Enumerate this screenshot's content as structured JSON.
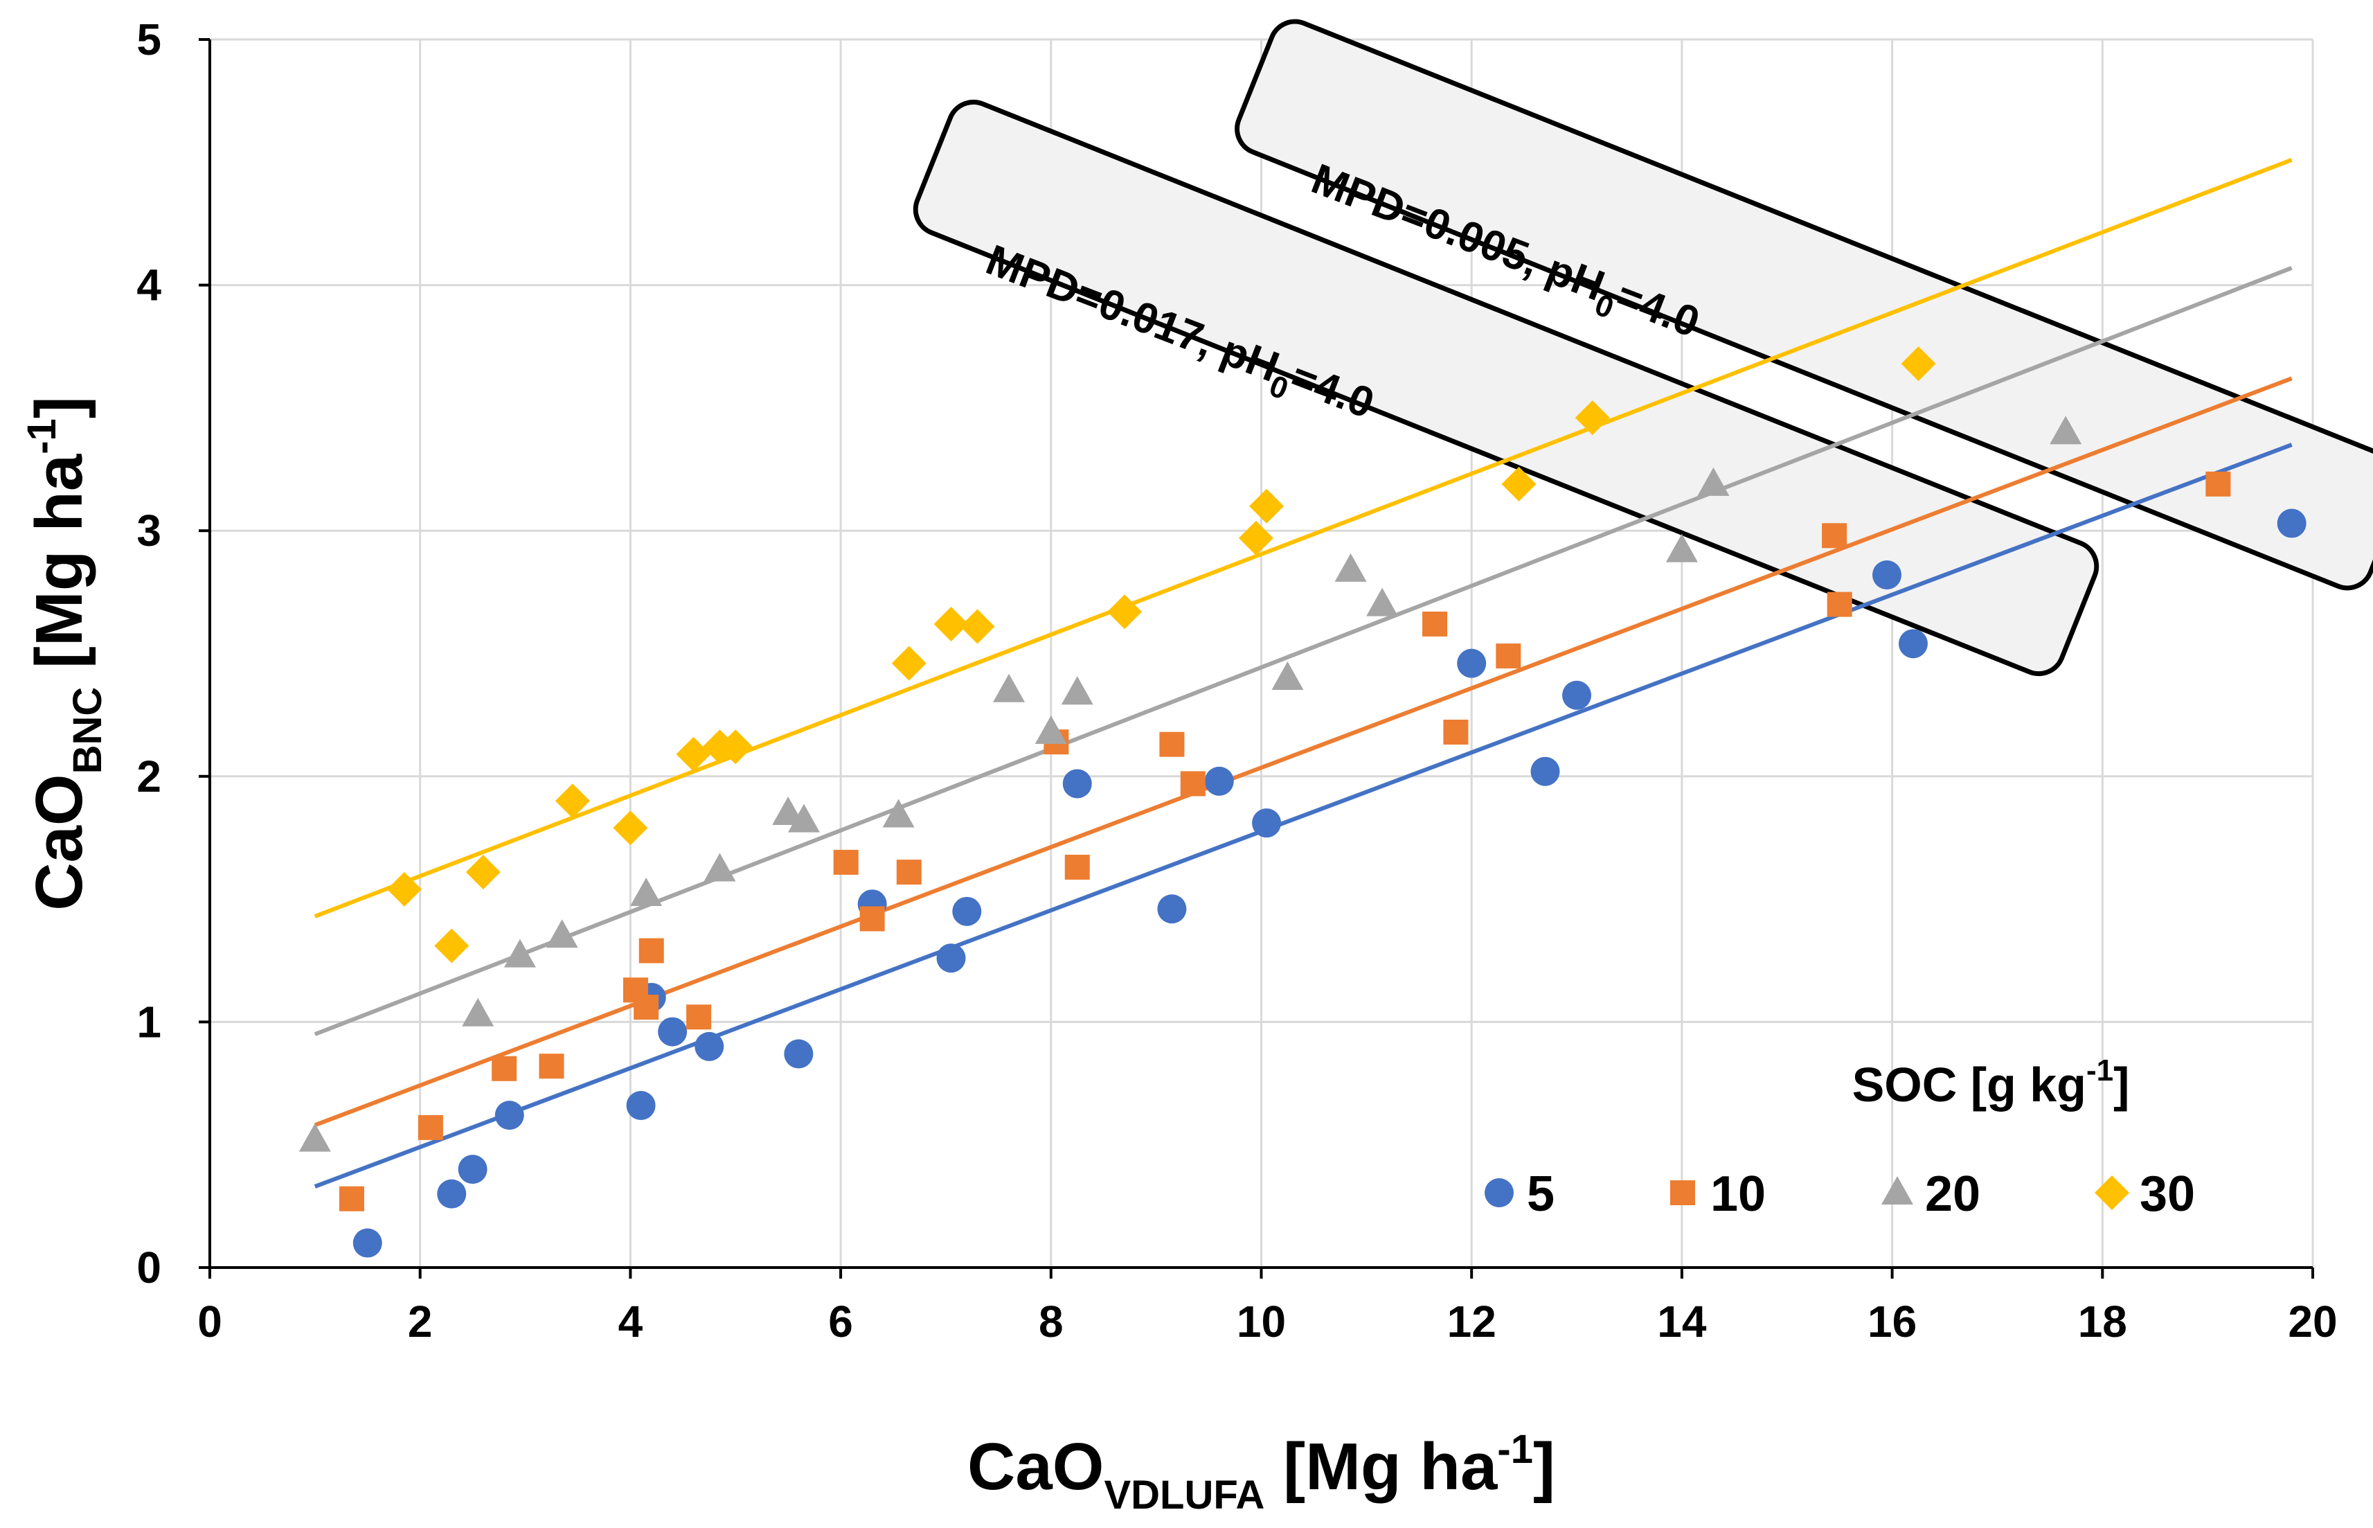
{
  "chart_data": {
    "type": "scatter",
    "title": "",
    "xlabel": {
      "main": "CaO",
      "sub": "VDLUFA",
      "unit_pre": " [Mg ha",
      "unit_sup": "-1",
      "unit_post": "]"
    },
    "ylabel": {
      "main": "CaO",
      "sub": "BNC",
      "unit_pre": " [Mg ha",
      "unit_sup": "-1",
      "unit_post": "]"
    },
    "xlim": [
      0,
      20
    ],
    "ylim": [
      0,
      5
    ],
    "x_ticks": [
      "0",
      "2",
      "4",
      "6",
      "8",
      "10",
      "12",
      "14",
      "16",
      "18",
      "20"
    ],
    "y_ticks": [
      "0",
      "1",
      "2",
      "3",
      "4",
      "5"
    ],
    "grid": true,
    "legend": {
      "title_pre": "SOC [g kg",
      "title_sup": "-1",
      "title_post": "]",
      "placement": "bottom-right"
    },
    "series": [
      {
        "name": "5",
        "marker": "circle",
        "color": "#4472C4",
        "points": [
          [
            1.5,
            0.1
          ],
          [
            2.3,
            0.3
          ],
          [
            2.5,
            0.4
          ],
          [
            2.85,
            0.62
          ],
          [
            4.1,
            0.66
          ],
          [
            4.2,
            1.1
          ],
          [
            4.4,
            0.96
          ],
          [
            4.75,
            0.9
          ],
          [
            5.6,
            0.87
          ],
          [
            6.3,
            1.48
          ],
          [
            7.05,
            1.26
          ],
          [
            7.2,
            1.45
          ],
          [
            8.25,
            1.97
          ],
          [
            9.15,
            1.46
          ],
          [
            9.6,
            1.98
          ],
          [
            10.05,
            1.81
          ],
          [
            12.0,
            2.46
          ],
          [
            12.7,
            2.02
          ],
          [
            13.0,
            2.33
          ],
          [
            15.95,
            2.82
          ],
          [
            16.2,
            2.54
          ],
          [
            19.8,
            3.03
          ]
        ],
        "fit": [
          [
            1.0,
            0.33
          ],
          [
            19.8,
            3.35
          ]
        ]
      },
      {
        "name": "10",
        "marker": "square",
        "color": "#ED7D31",
        "points": [
          [
            1.35,
            0.28
          ],
          [
            2.1,
            0.57
          ],
          [
            2.8,
            0.81
          ],
          [
            3.25,
            0.82
          ],
          [
            4.05,
            1.13
          ],
          [
            4.15,
            1.06
          ],
          [
            4.2,
            1.29
          ],
          [
            4.65,
            1.02
          ],
          [
            6.05,
            1.65
          ],
          [
            6.3,
            1.42
          ],
          [
            6.65,
            1.61
          ],
          [
            8.05,
            2.14
          ],
          [
            8.25,
            1.63
          ],
          [
            9.15,
            2.13
          ],
          [
            9.35,
            1.97
          ],
          [
            11.65,
            2.62
          ],
          [
            11.85,
            2.18
          ],
          [
            12.35,
            2.49
          ],
          [
            15.45,
            2.98
          ],
          [
            15.5,
            2.7
          ],
          [
            19.1,
            3.19
          ]
        ],
        "fit": [
          [
            1.0,
            0.58
          ],
          [
            19.8,
            3.62
          ]
        ]
      },
      {
        "name": "20",
        "marker": "triangle",
        "color": "#A5A5A5",
        "points": [
          [
            1.0,
            0.52
          ],
          [
            2.55,
            1.03
          ],
          [
            2.95,
            1.27
          ],
          [
            3.35,
            1.35
          ],
          [
            4.15,
            1.52
          ],
          [
            4.85,
            1.62
          ],
          [
            5.5,
            1.85
          ],
          [
            5.65,
            1.82
          ],
          [
            6.55,
            1.84
          ],
          [
            7.6,
            2.35
          ],
          [
            8.0,
            2.18
          ],
          [
            8.25,
            2.34
          ],
          [
            10.25,
            2.4
          ],
          [
            10.85,
            2.84
          ],
          [
            11.15,
            2.7
          ],
          [
            14.0,
            2.92
          ],
          [
            14.3,
            3.19
          ],
          [
            17.65,
            3.4
          ]
        ],
        "fit": [
          [
            1.0,
            0.95
          ],
          [
            19.8,
            4.07
          ]
        ]
      },
      {
        "name": "30",
        "marker": "diamond",
        "color": "#FFC000",
        "points": [
          [
            1.85,
            1.54
          ],
          [
            2.3,
            1.31
          ],
          [
            2.6,
            1.61
          ],
          [
            3.45,
            1.9
          ],
          [
            4.0,
            1.79
          ],
          [
            4.6,
            2.09
          ],
          [
            4.85,
            2.12
          ],
          [
            5.0,
            2.12
          ],
          [
            6.65,
            2.46
          ],
          [
            7.05,
            2.62
          ],
          [
            7.3,
            2.61
          ],
          [
            8.7,
            2.67
          ],
          [
            9.95,
            2.97
          ],
          [
            10.05,
            3.1
          ],
          [
            12.45,
            3.19
          ],
          [
            13.15,
            3.46
          ],
          [
            16.25,
            3.68
          ]
        ],
        "fit": [
          [
            1.0,
            1.43
          ],
          [
            19.8,
            4.51
          ]
        ]
      }
    ],
    "annotations": [
      {
        "pre": "MPD=0.017, pH",
        "sub": "0",
        "post": "=4.0"
      },
      {
        "pre": "MPD=0.005, pH",
        "sub": "0",
        "post": "=4.0"
      }
    ]
  }
}
